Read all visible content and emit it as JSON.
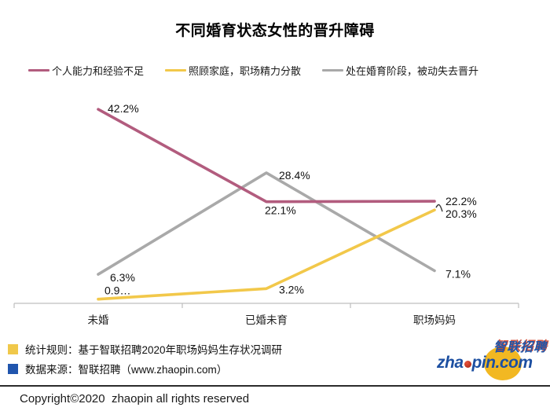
{
  "title": "不同婚育状态女性的晋升障碍",
  "chart_data": {
    "type": "line",
    "categories": [
      "未婚",
      "已婚未育",
      "职场妈妈"
    ],
    "series": [
      {
        "name": "个人能力和经验不足",
        "color": "#b25c7e",
        "values": [
          42.2,
          22.1,
          22.2
        ],
        "point_labels": [
          "42.2%",
          "22.1%",
          "22.2%"
        ]
      },
      {
        "name": "照顾家庭，职场精力分散",
        "color": "#f2c84a",
        "values": [
          0.9,
          3.2,
          20.3
        ],
        "point_labels": [
          "0.9…",
          "3.2%",
          "20.3%"
        ]
      },
      {
        "name": "处在婚育阶段，被动失去晋升",
        "color": "#a9a9a9",
        "values": [
          6.3,
          28.4,
          7.1
        ],
        "point_labels": [
          "6.3%",
          "28.4%",
          "7.1%"
        ]
      }
    ],
    "ylim": [
      0,
      45.5
    ],
    "grid": false,
    "legend_position": "top",
    "axis_color": "#bfbfbf",
    "label_color": "#111111"
  },
  "footer": {
    "notes": [
      {
        "marker_color": "#f0c84a",
        "text": "统计规则：基于智联招聘2020年职场妈妈生存状况调研"
      },
      {
        "marker_color": "#2055ad",
        "text": "数据来源：智联招聘（www.zhaopin.com）"
      }
    ],
    "logo": {
      "brand_cn": "智联招聘",
      "brand_en_prefix": "zha",
      "brand_en_suffix": "pin.com"
    },
    "copyright": "Copyright©2020  zhaopin all rights reserved"
  }
}
